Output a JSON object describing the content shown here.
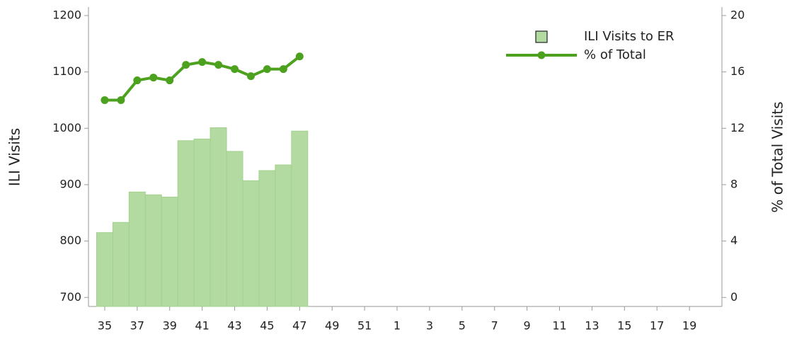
{
  "chart_data": {
    "type": "bar-line",
    "y_label": "ILI Visits",
    "y2_label": "% of Total Visits",
    "categories": [
      "35",
      null,
      "37",
      null,
      "39",
      null,
      "41",
      null,
      "43",
      null,
      "45",
      null,
      "47",
      null,
      "49",
      null,
      "51",
      null,
      "1",
      null,
      "3",
      null,
      "5",
      null,
      "7",
      null,
      "9",
      null,
      "11",
      null,
      "13",
      null,
      "15",
      null,
      "17",
      null,
      "19",
      null
    ],
    "series": [
      {
        "name": "ILI Visits to ER",
        "type": "bar",
        "color": "#b3dba1",
        "values": [
          815,
          833,
          887,
          882,
          878,
          978,
          981,
          1001,
          959,
          907,
          925,
          935,
          995,
          null,
          null,
          null,
          null,
          null,
          null,
          null,
          null,
          null,
          null,
          null,
          null,
          null,
          null,
          null,
          null,
          null,
          null,
          null,
          null,
          null,
          null,
          null,
          null,
          null
        ]
      },
      {
        "name": "% of Total",
        "type": "line",
        "axis": "y2",
        "color": "#4ca21e",
        "values": [
          14.0,
          14.0,
          15.4,
          15.6,
          15.4,
          16.5,
          16.7,
          16.5,
          16.2,
          15.7,
          16.2,
          16.2,
          17.1,
          null,
          null,
          null,
          null,
          null,
          null,
          null,
          null,
          null,
          null,
          null,
          null,
          null,
          null,
          null,
          null,
          null,
          null,
          null,
          null,
          null,
          null,
          null,
          null,
          null
        ]
      }
    ],
    "ylim": [
      684,
      1215
    ],
    "yticks": [
      700,
      800,
      900,
      1000,
      1100,
      1200
    ],
    "y2lim": [
      -0.64,
      20.6
    ],
    "y2ticks": [
      0,
      4,
      8,
      12,
      16,
      20
    ],
    "legend": "top-right"
  }
}
